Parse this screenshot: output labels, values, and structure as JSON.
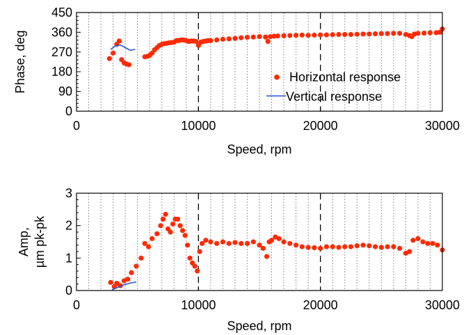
{
  "chart_data": [
    {
      "type": "scatter",
      "title": "",
      "xlabel": "Speed, rpm",
      "ylabel": "Phase, deg",
      "xlim": [
        0,
        30000
      ],
      "ylim": [
        0,
        450
      ],
      "xticks": [
        0,
        10000,
        20000,
        30000
      ],
      "xtick_labels": [
        "0",
        "10000",
        "20000",
        "30000"
      ],
      "yticks": [
        0,
        90,
        180,
        270,
        360,
        450
      ],
      "ytick_labels": [
        "0",
        "90",
        "180",
        "270",
        "360",
        "450"
      ],
      "minor_grid_x": [
        1000,
        2000,
        3000,
        4000,
        5000,
        6000,
        7000,
        8000,
        9000,
        11000,
        12000,
        13000,
        14000,
        15000,
        16000,
        17000,
        18000,
        19000,
        21000,
        22000,
        23000,
        24000,
        25000,
        26000,
        27000,
        28000,
        29000
      ],
      "major_grid_x": [
        10000,
        20000
      ],
      "legend_position": "lower-right",
      "series": [
        {
          "name": "Horizontal response",
          "style": "points",
          "color": "#ff2a00",
          "x": [
            2700,
            3000,
            3300,
            3500,
            3700,
            3900,
            4100,
            4300,
            5600,
            5800,
            6000,
            6200,
            6400,
            6600,
            6800,
            7000,
            7200,
            7400,
            7600,
            7800,
            8000,
            8200,
            8400,
            8600,
            8800,
            9000,
            9200,
            9400,
            9600,
            9800,
            10000,
            10200,
            10400,
            10600,
            10800,
            11000,
            11500,
            12000,
            12500,
            13000,
            13500,
            14000,
            14500,
            15000,
            15500,
            15700,
            15900,
            16200,
            16500,
            17000,
            17500,
            18000,
            18500,
            19000,
            19500,
            20000,
            20500,
            21000,
            21500,
            22000,
            22500,
            23000,
            23500,
            24000,
            24500,
            25000,
            25500,
            26000,
            26500,
            27000,
            27300,
            27500,
            27700,
            28000,
            28500,
            29000,
            29500,
            29800,
            30000
          ],
          "y": [
            240,
            265,
            305,
            320,
            235,
            220,
            215,
            212,
            248,
            250,
            255,
            265,
            280,
            290,
            300,
            305,
            308,
            310,
            312,
            313,
            315,
            322,
            322,
            325,
            324,
            322,
            318,
            320,
            320,
            318,
            300,
            315,
            318,
            320,
            322,
            322,
            325,
            328,
            330,
            332,
            335,
            337,
            338,
            340,
            338,
            318,
            340,
            342,
            343,
            344,
            345,
            346,
            347,
            346,
            347,
            348,
            348,
            349,
            350,
            350,
            350,
            351,
            352,
            352,
            353,
            354,
            354,
            355,
            355,
            350,
            345,
            340,
            352,
            355,
            356,
            358,
            358,
            360,
            375
          ]
        },
        {
          "name": "Vertical response",
          "style": "line",
          "color": "#2255dd",
          "x": [
            2800,
            3200,
            3600,
            4000,
            4400,
            4800
          ],
          "y": [
            282,
            298,
            302,
            290,
            278,
            282
          ]
        }
      ]
    },
    {
      "type": "scatter",
      "title": "",
      "xlabel": "Speed, rpm",
      "ylabel": "Amp,\nµm pk-pk",
      "ylabel_lines": [
        "Amp,",
        "µm pk-pk"
      ],
      "xlim": [
        0,
        30000
      ],
      "ylim": [
        0,
        3
      ],
      "xticks": [
        0,
        10000,
        20000,
        30000
      ],
      "xtick_labels": [
        "0",
        "10000",
        "20000",
        "30000"
      ],
      "yticks": [
        0,
        1,
        2,
        3
      ],
      "ytick_labels": [
        "0",
        "1",
        "2",
        "3"
      ],
      "minor_grid_x": [
        1000,
        2000,
        3000,
        4000,
        5000,
        6000,
        7000,
        8000,
        9000,
        11000,
        12000,
        13000,
        14000,
        15000,
        16000,
        17000,
        18000,
        19000,
        21000,
        22000,
        23000,
        24000,
        25000,
        26000,
        27000,
        28000,
        29000
      ],
      "major_grid_x": [
        10000,
        20000
      ],
      "series": [
        {
          "name": "Horizontal response",
          "style": "points",
          "color": "#ff2a00",
          "x": [
            2800,
            3100,
            3300,
            3600,
            3900,
            4200,
            4500,
            4900,
            5300,
            5600,
            5900,
            6200,
            6600,
            6900,
            7100,
            7300,
            7500,
            7700,
            7900,
            8100,
            8300,
            8500,
            8700,
            8900,
            9100,
            9300,
            9500,
            9700,
            9900,
            10100,
            10300,
            10600,
            11000,
            11500,
            12000,
            12500,
            13000,
            13500,
            14000,
            14500,
            15000,
            15300,
            15600,
            15800,
            16000,
            16300,
            16600,
            17000,
            17500,
            18000,
            18500,
            19000,
            19500,
            20000,
            20500,
            21000,
            21500,
            22000,
            22500,
            23000,
            23500,
            24000,
            24500,
            25000,
            25500,
            26000,
            26500,
            27000,
            27300,
            27600,
            28000,
            28400,
            28800,
            29200,
            29600,
            30000
          ],
          "y": [
            0.25,
            0.12,
            0.22,
            0.15,
            0.3,
            0.35,
            0.55,
            0.75,
            1.0,
            1.45,
            1.35,
            1.6,
            1.75,
            2.0,
            2.2,
            2.35,
            1.9,
            1.8,
            2.05,
            2.2,
            2.2,
            2.0,
            1.85,
            1.7,
            1.4,
            1.0,
            0.85,
            0.75,
            0.6,
            1.2,
            1.45,
            1.55,
            1.5,
            1.45,
            1.5,
            1.45,
            1.48,
            1.45,
            1.45,
            1.5,
            1.4,
            1.3,
            1.05,
            1.5,
            1.55,
            1.65,
            1.6,
            1.5,
            1.45,
            1.4,
            1.35,
            1.33,
            1.32,
            1.3,
            1.35,
            1.35,
            1.33,
            1.35,
            1.35,
            1.38,
            1.4,
            1.38,
            1.35,
            1.33,
            1.35,
            1.35,
            1.3,
            1.15,
            1.2,
            1.55,
            1.6,
            1.5,
            1.45,
            1.45,
            1.4,
            1.25
          ]
        },
        {
          "name": "Vertical response",
          "style": "line",
          "color": "#2255dd",
          "x": [
            2900,
            3400,
            3900,
            4400,
            4900
          ],
          "y": [
            0.02,
            0.1,
            0.18,
            0.23,
            0.26
          ]
        }
      ]
    }
  ]
}
